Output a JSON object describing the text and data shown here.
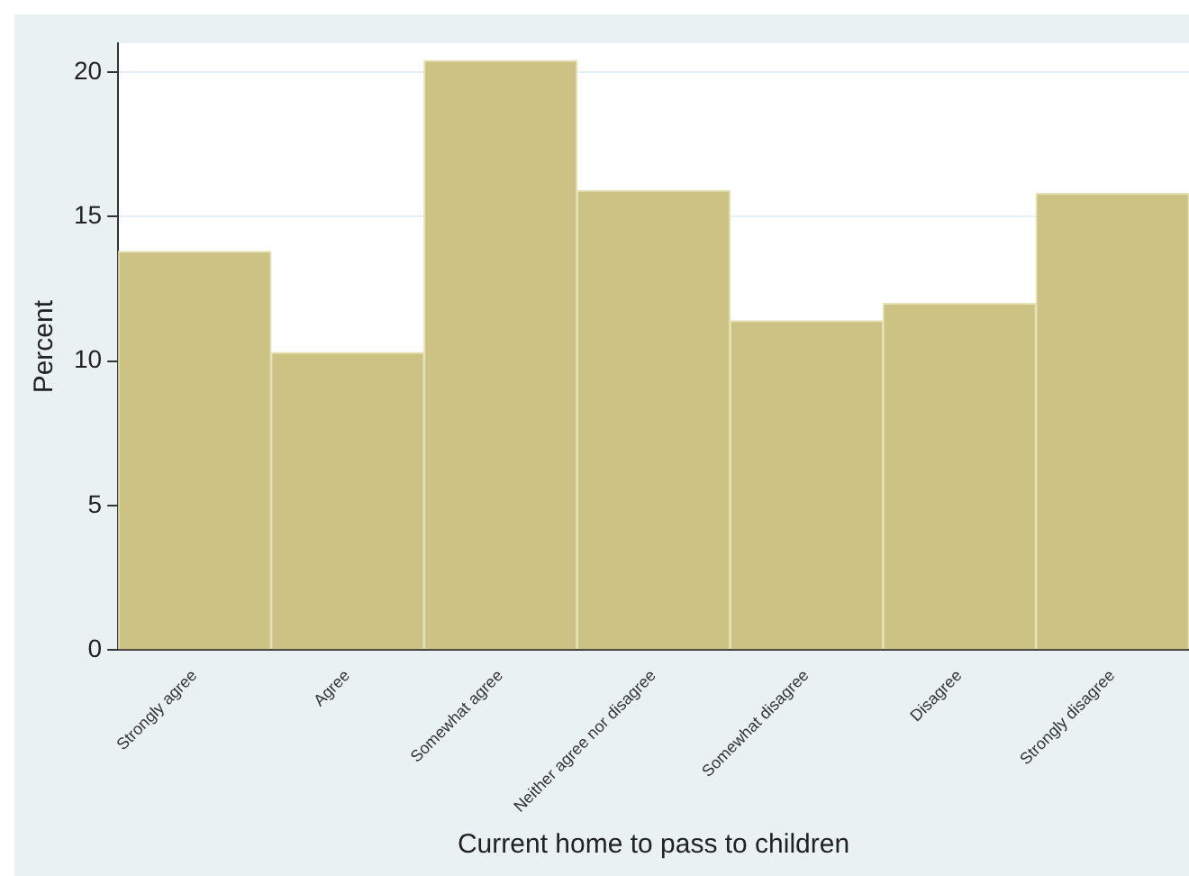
{
  "chart_data": {
    "type": "bar",
    "xlabel": "Current home to pass to children",
    "ylabel": "Percent",
    "categories": [
      "Strongly agree",
      "Agree",
      "Somewhat agree",
      "Neither agree nor disagree",
      "Somewhat disagree",
      "Disagree",
      "Strongly disagree"
    ],
    "values": [
      13.8,
      10.3,
      20.4,
      15.9,
      11.4,
      12.0,
      15.8
    ],
    "color": "#cbc283",
    "ylim": [
      0,
      21
    ],
    "yticks": [
      0,
      5,
      10,
      15,
      20
    ],
    "grid": "y",
    "legend": false
  }
}
